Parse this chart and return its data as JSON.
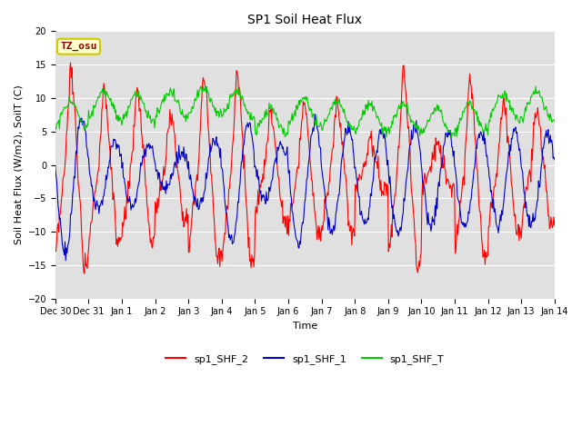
{
  "title": "SP1 Soil Heat Flux",
  "xlabel": "Time",
  "ylabel": "Soil Heat Flux (W/m2), SoilT (C)",
  "ylim": [
    -20,
    20
  ],
  "yticks": [
    -20,
    -15,
    -10,
    -5,
    0,
    5,
    10,
    15,
    20
  ],
  "color_shf2": "#ff0000",
  "color_shf1": "#0000cc",
  "color_shft": "#00cc00",
  "bg_color": "#e0e0e0",
  "legend_labels": [
    "sp1_SHF_2",
    "sp1_SHF_1",
    "sp1_SHF_T"
  ],
  "annotation_text": "TZ_osu",
  "annotation_color": "#880000",
  "annotation_bg": "#ffffcc",
  "annotation_border": "#cccc00",
  "xtick_labels": [
    "Dec 30",
    "Dec 31",
    "Jan 1",
    "Jan 2",
    "Jan 3",
    "Jan 4",
    "Jan 5",
    "Jan 6",
    "Jan 7",
    "Jan 8",
    "Jan 9",
    "Jan 10",
    "Jan 11",
    "Jan 12",
    "Jan 13",
    "Jan 14"
  ],
  "n_days": 15,
  "n_points_per_day": 48,
  "title_fontsize": 10,
  "label_fontsize": 8,
  "tick_fontsize": 7,
  "legend_fontsize": 8
}
